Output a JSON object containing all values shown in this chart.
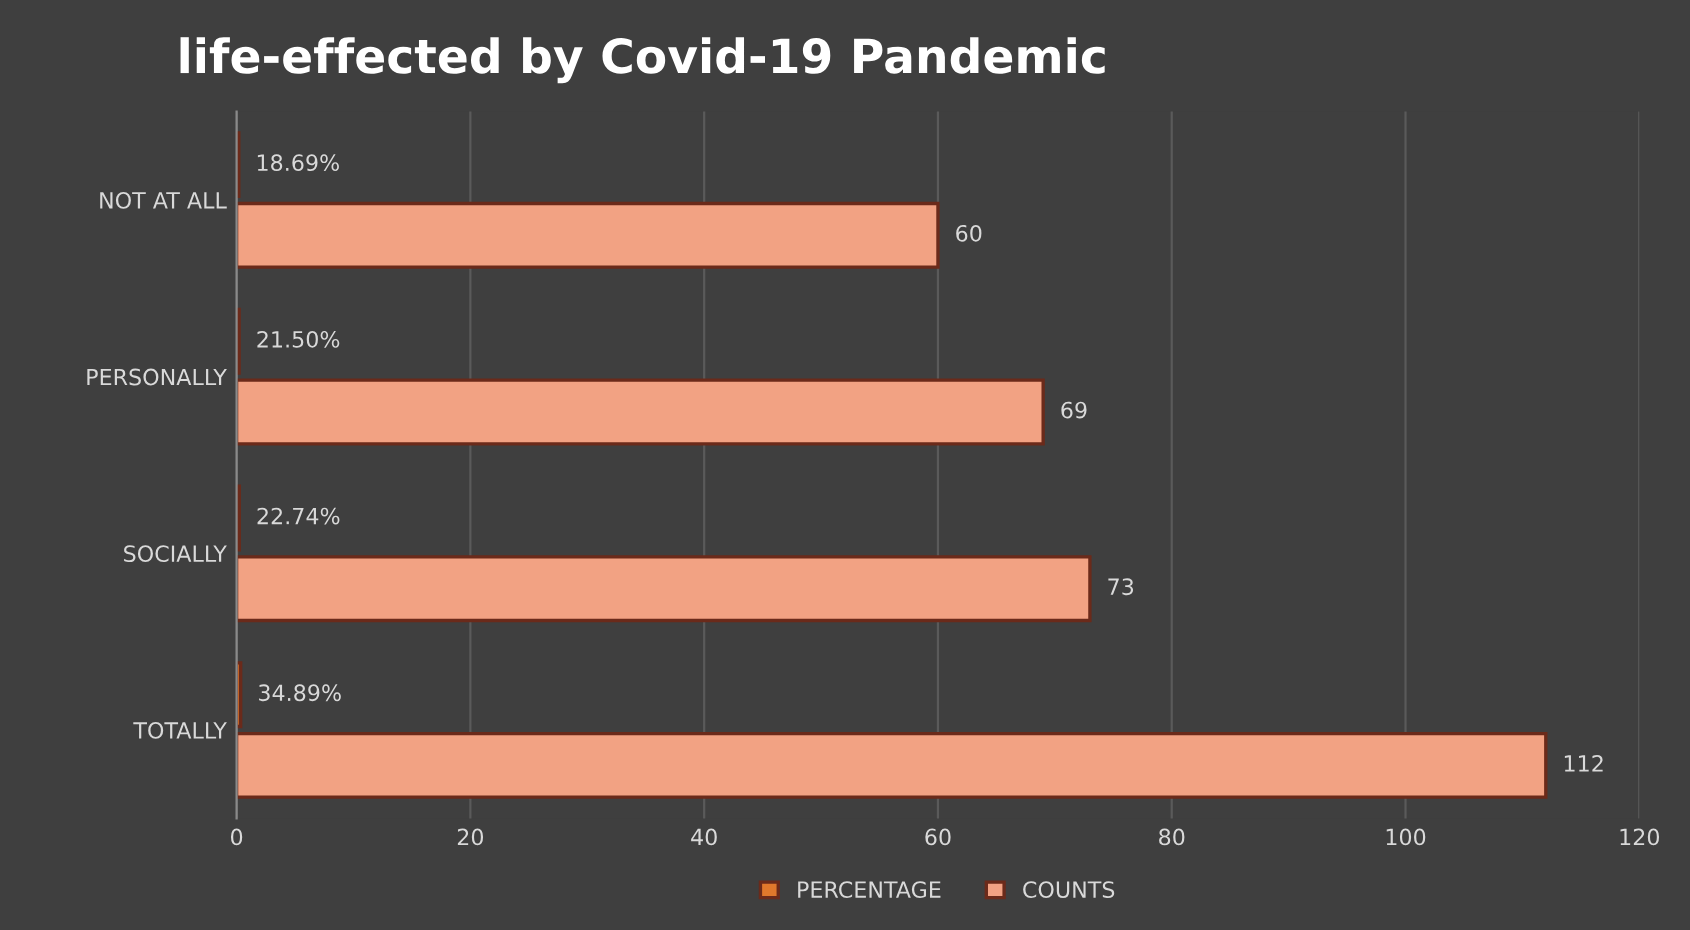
{
  "chart_data": {
    "type": "bar",
    "orientation": "horizontal",
    "title": "life-effected by Covid-19 Pandemic",
    "categories": [
      "NOT AT ALL",
      "PERSONALLY",
      "SOCIALLY",
      "TOTALLY"
    ],
    "series": [
      {
        "name": "PERCENTAGE",
        "color": "#e0782c",
        "values": [
          0.1869,
          0.215,
          0.2274,
          0.3489
        ],
        "value_labels": [
          "18.69%",
          "21.50%",
          "22.74%",
          "34.89%"
        ]
      },
      {
        "name": "COUNTS",
        "color": "#f2a283",
        "values": [
          60,
          69,
          73,
          112
        ],
        "value_labels": [
          "60",
          "69",
          "73",
          "112"
        ]
      }
    ],
    "xlim": [
      0,
      120
    ],
    "xticks": [
      0,
      20,
      40,
      60,
      80,
      100,
      120
    ],
    "grid": "x",
    "legend": "bottom"
  }
}
